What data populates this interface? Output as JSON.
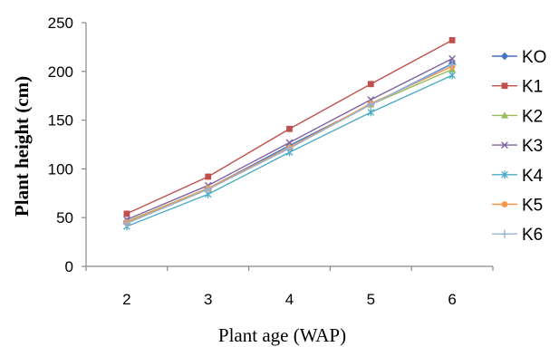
{
  "chart_data": {
    "type": "line",
    "title": "",
    "xlabel": "Plant age (WAP)",
    "ylabel": "Plant height (cm)",
    "x": [
      2,
      3,
      4,
      5,
      6
    ],
    "xlim": [
      1.5,
      6.5
    ],
    "ylim": [
      0,
      250
    ],
    "yticks": [
      0,
      50,
      100,
      150,
      200,
      250
    ],
    "grid": false,
    "legend_position": "right",
    "series": [
      {
        "name": "KO",
        "values": [
          46,
          80,
          124,
          166,
          208
        ],
        "color": "#4472C4",
        "marker": "diamond"
      },
      {
        "name": "K1",
        "values": [
          54,
          92,
          141,
          187,
          232
        ],
        "color": "#C0504D",
        "marker": "square"
      },
      {
        "name": "K2",
        "values": [
          46,
          80,
          122,
          166,
          202
        ],
        "color": "#9BBB59",
        "marker": "triangle"
      },
      {
        "name": "K3",
        "values": [
          48,
          83,
          127,
          171,
          213
        ],
        "color": "#8064A2",
        "marker": "x"
      },
      {
        "name": "K4",
        "values": [
          41,
          74,
          117,
          158,
          196
        ],
        "color": "#4BACC6",
        "marker": "star"
      },
      {
        "name": "K5",
        "values": [
          45,
          80,
          122,
          167,
          205
        ],
        "color": "#F79646",
        "marker": "circle"
      },
      {
        "name": "K6",
        "values": [
          44,
          79,
          121,
          166,
          207
        ],
        "color": "#95B3D7",
        "marker": "plus"
      }
    ]
  }
}
